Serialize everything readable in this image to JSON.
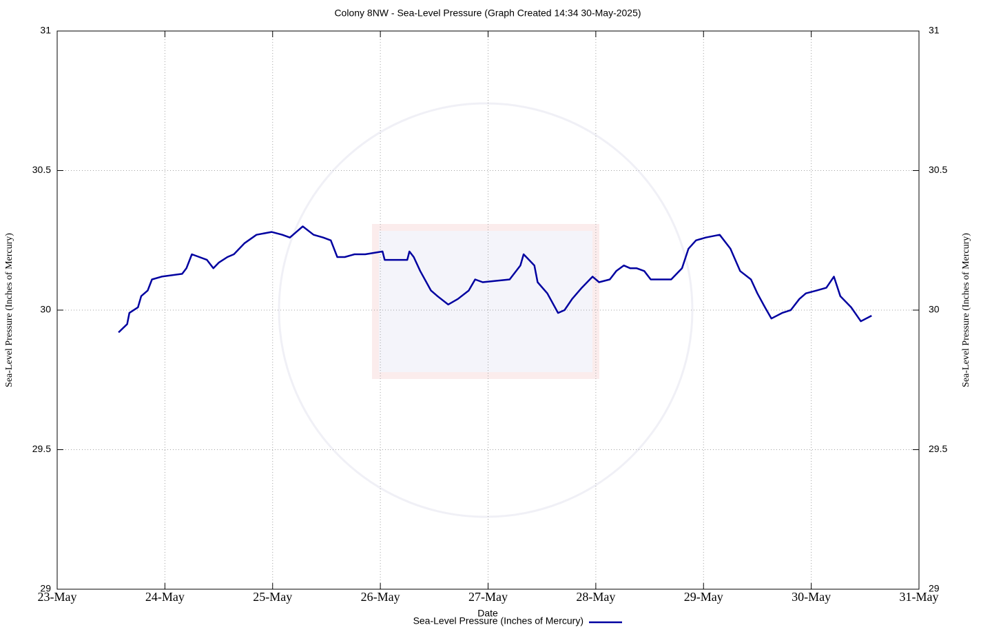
{
  "chart_data": {
    "type": "line",
    "title": "Colony 8NW - Sea-Level Pressure (Graph Created 14:34 30-May-2025)",
    "xlabel": "Date",
    "ylabel": "Sea-Level Pressure (Inches of Mercury)",
    "y2label": "Sea-Level Pressure (Inches of Mercury)",
    "x": [
      23.57,
      23.65,
      23.67,
      23.75,
      23.78,
      23.84,
      23.88,
      23.97,
      24.16,
      24.2,
      24.25,
      24.32,
      24.39,
      24.45,
      24.5,
      24.58,
      24.64,
      24.74,
      24.85,
      24.99,
      25.09,
      25.16,
      25.22,
      25.28,
      25.38,
      25.47,
      25.54,
      25.6,
      25.67,
      25.76,
      25.86,
      26.02,
      26.04,
      26.15,
      26.25,
      26.27,
      26.31,
      26.37,
      26.47,
      26.53,
      26.63,
      26.72,
      26.82,
      26.88,
      26.95,
      27.2,
      27.3,
      27.33,
      27.43,
      27.46,
      27.55,
      27.65,
      27.71,
      27.78,
      27.87,
      27.97,
      28.03,
      28.13,
      28.19,
      28.26,
      28.32,
      28.38,
      28.45,
      28.51,
      28.61,
      28.7,
      28.8,
      28.86,
      28.93,
      29.02,
      29.15,
      29.25,
      29.34,
      29.44,
      29.5,
      29.57,
      29.63,
      29.73,
      29.81,
      29.89,
      29.95,
      30.05,
      30.14,
      30.21,
      30.27,
      30.37,
      30.46,
      30.56
    ],
    "series": [
      {
        "name": "Sea-Level Pressure (Inches of Mercury)",
        "color": "#0000a0",
        "values": [
          29.92,
          29.95,
          29.99,
          30.01,
          30.05,
          30.07,
          30.11,
          30.12,
          30.13,
          30.15,
          30.2,
          30.19,
          30.18,
          30.15,
          30.17,
          30.19,
          30.2,
          30.24,
          30.27,
          30.28,
          30.27,
          30.26,
          30.28,
          30.3,
          30.27,
          30.26,
          30.25,
          30.19,
          30.19,
          30.2,
          30.2,
          30.21,
          30.18,
          30.18,
          30.18,
          30.21,
          30.19,
          30.14,
          30.07,
          30.05,
          30.02,
          30.04,
          30.07,
          30.11,
          30.1,
          30.11,
          30.16,
          30.2,
          30.16,
          30.1,
          30.06,
          29.99,
          30.0,
          30.04,
          30.08,
          30.12,
          30.1,
          30.11,
          30.14,
          30.16,
          30.15,
          30.15,
          30.14,
          30.11,
          30.11,
          30.11,
          30.15,
          30.22,
          30.25,
          30.26,
          30.27,
          30.22,
          30.14,
          30.11,
          30.06,
          30.01,
          29.97,
          29.99,
          30.0,
          30.04,
          30.06,
          30.07,
          30.08,
          30.12,
          30.05,
          30.01,
          29.96,
          29.98
        ]
      }
    ],
    "xlim": [
      23,
      31
    ],
    "xticks": [
      {
        "value": 23,
        "label": "23-May"
      },
      {
        "value": 24,
        "label": "24-May"
      },
      {
        "value": 25,
        "label": "25-May"
      },
      {
        "value": 26,
        "label": "26-May"
      },
      {
        "value": 27,
        "label": "27-May"
      },
      {
        "value": 28,
        "label": "28-May"
      },
      {
        "value": 29,
        "label": "29-May"
      },
      {
        "value": 30,
        "label": "30-May"
      },
      {
        "value": 31,
        "label": "31-May"
      }
    ],
    "ylim": [
      29,
      31
    ],
    "yticks": [
      29,
      29.5,
      30,
      30.5,
      31
    ],
    "y2lim": [
      29,
      31
    ],
    "y2ticks": [
      29,
      29.5,
      30,
      30.5,
      31
    ],
    "grid": true,
    "legend": "bottom"
  }
}
